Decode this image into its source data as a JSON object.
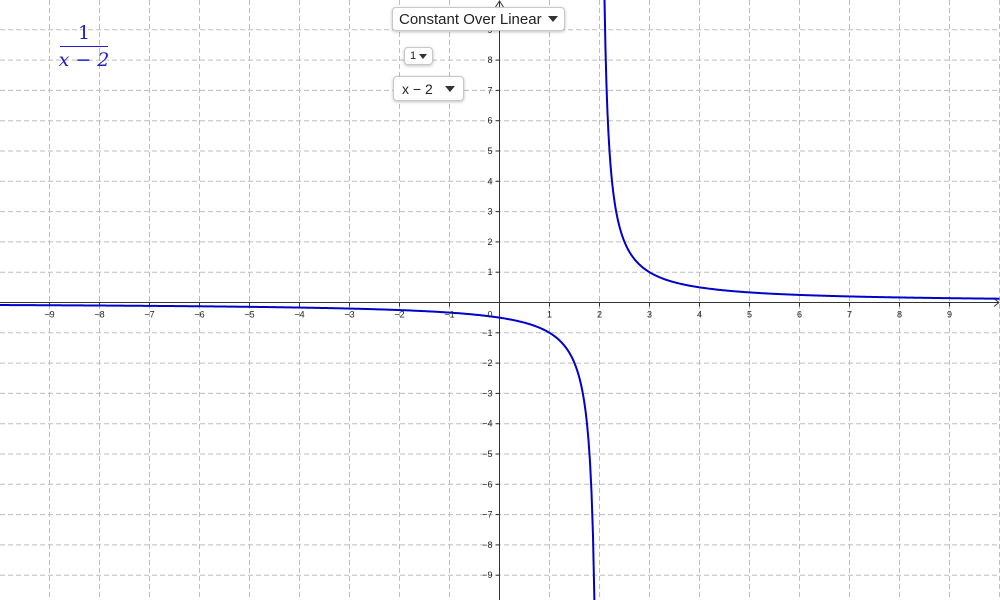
{
  "app": {
    "function_type_dropdown": {
      "selected": "Constant Over Linear"
    },
    "numerator_dropdown": {
      "selected": "1"
    },
    "denominator_dropdown": {
      "selected": "x − 2"
    },
    "formula": {
      "numerator": "1",
      "denominator": "x − 2"
    }
  },
  "colors": {
    "curve": "#0000cc",
    "grid": "#bdbdbd",
    "axis": "#333333",
    "formula": "#2020c0"
  },
  "chart_data": {
    "type": "line",
    "title": "",
    "xlabel": "",
    "ylabel": "",
    "xlim": [
      -10,
      10
    ],
    "ylim": [
      -10,
      10
    ],
    "grid": true,
    "asymptote_x": 2,
    "function": "1/(x-2)",
    "x_ticks": [
      "−9",
      "−8",
      "−7",
      "−6",
      "−5",
      "−4",
      "−3",
      "−2",
      "−1",
      "1",
      "2",
      "3",
      "4",
      "5",
      "6",
      "7",
      "8",
      "9"
    ],
    "x_tick_values": [
      -9,
      -8,
      -7,
      -6,
      -5,
      -4,
      -3,
      -2,
      -1,
      1,
      2,
      3,
      4,
      5,
      6,
      7,
      8,
      9
    ],
    "y_ticks": [
      "9",
      "8",
      "7",
      "6",
      "5",
      "4",
      "3",
      "2",
      "1",
      "−1",
      "−2",
      "−3",
      "−4",
      "−5",
      "−6",
      "−7",
      "−8",
      "−9"
    ],
    "y_tick_values": [
      9,
      8,
      7,
      6,
      5,
      4,
      3,
      2,
      1,
      -1,
      -2,
      -3,
      -4,
      -5,
      -6,
      -7,
      -8,
      -9
    ],
    "origin_label": "0",
    "series": [
      {
        "x": [
          -10,
          -9,
          -8,
          -7,
          -6,
          -5,
          -4,
          -3,
          -2,
          -1,
          0,
          0.5,
          1,
          1.25,
          1.5,
          1.6,
          1.7,
          1.75,
          1.8,
          1.85,
          1.88,
          1.9
        ],
        "y": [
          -0.083,
          -0.091,
          -0.1,
          -0.111,
          -0.125,
          -0.143,
          -0.167,
          -0.2,
          -0.25,
          -0.333,
          -0.5,
          -0.667,
          -1,
          -1.333,
          -2,
          -2.5,
          -3.333,
          -4,
          -5,
          -6.667,
          -8.333,
          -10
        ]
      },
      {
        "x": [
          2.1,
          2.12,
          2.15,
          2.2,
          2.25,
          2.3,
          2.4,
          2.5,
          2.75,
          3,
          3.5,
          4,
          5,
          6,
          7,
          8,
          9,
          10
        ],
        "y": [
          10,
          8.333,
          6.667,
          5,
          4,
          3.333,
          2.5,
          2,
          1.333,
          1,
          0.667,
          0.5,
          0.333,
          0.25,
          0.2,
          0.167,
          0.143,
          0.125
        ]
      }
    ]
  }
}
